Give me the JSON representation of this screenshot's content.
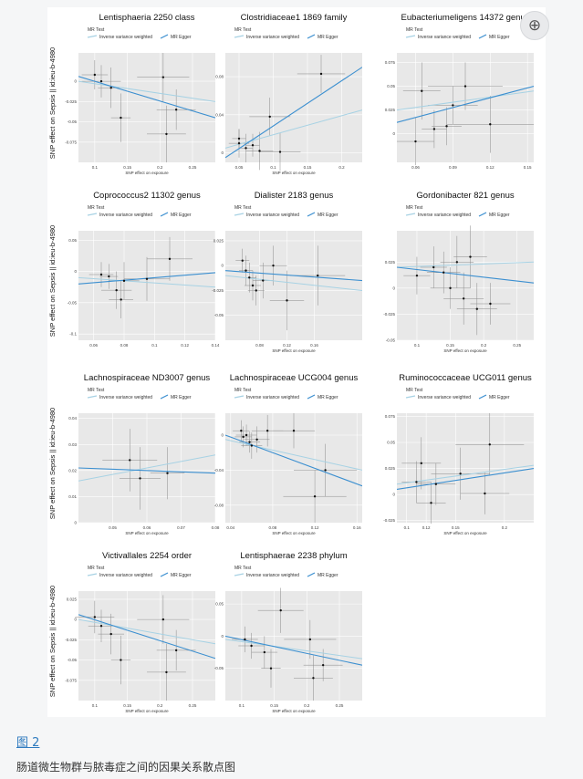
{
  "figure": {
    "link_label": "图 2",
    "caption": "肠道微生物群与脓毒症之间的因果关系散点图",
    "corner_icon": "zoom-icon",
    "colors": {
      "panel_bg": "#e8e8e8",
      "grid": "#ffffff",
      "ivw_line": "#3b8fd0",
      "egger_line": "#a7d2e4",
      "points": "#111111",
      "error_bars": "#8a8a8a"
    }
  },
  "chart_data": [
    {
      "type": "scatter",
      "title": "Lentisphaeria 2250 class",
      "ylabel": "SNP effect on Sepsis || id:ieu-b-4980",
      "xlabel": "SNP effect on exposure",
      "legend_title": "MR Test",
      "legend": [
        "Inverse variance weighted",
        "MR Egger"
      ],
      "xlim": [
        0.075,
        0.285
      ],
      "ylim": [
        -0.1,
        0.035
      ],
      "xticks": [
        0.1,
        0.15,
        0.2,
        0.25
      ],
      "yticks": [
        0,
        -0.025,
        -0.05,
        -0.075
      ],
      "points": [
        {
          "x": 0.11,
          "y": 0.0,
          "dx": 0.03,
          "dy": 0.02
        },
        {
          "x": 0.1,
          "y": 0.008,
          "dx": 0.02,
          "dy": 0.018
        },
        {
          "x": 0.125,
          "y": -0.008,
          "dx": 0.02,
          "dy": 0.025
        },
        {
          "x": 0.14,
          "y": -0.045,
          "dx": 0.015,
          "dy": 0.03
        },
        {
          "x": 0.205,
          "y": 0.005,
          "dx": 0.04,
          "dy": 0.03
        },
        {
          "x": 0.21,
          "y": -0.065,
          "dx": 0.03,
          "dy": 0.035
        },
        {
          "x": 0.225,
          "y": -0.035,
          "dx": 0.03,
          "dy": 0.025
        }
      ],
      "lines": {
        "ivw": [
          [
            0.075,
            0.006
          ],
          [
            0.285,
            -0.045
          ]
        ],
        "egger": [
          [
            0.075,
            0.0
          ],
          [
            0.285,
            -0.025
          ]
        ]
      }
    },
    {
      "type": "scatter",
      "title": "Clostridiaceae1 1869 family",
      "ylabel": "",
      "xlabel": "SNP effect on exposure",
      "legend_title": "MR Test",
      "legend": [
        "Inverse variance weighted",
        "MR Egger"
      ],
      "xlim": [
        0.03,
        0.23
      ],
      "ylim": [
        -0.01,
        0.105
      ],
      "xticks": [
        0.05,
        0.1,
        0.15,
        0.2
      ],
      "yticks": [
        0,
        0.04,
        0.08
      ],
      "points": [
        {
          "x": 0.05,
          "y": 0.01,
          "dx": 0.015,
          "dy": 0.015
        },
        {
          "x": 0.06,
          "y": 0.005,
          "dx": 0.01,
          "dy": 0.015
        },
        {
          "x": 0.07,
          "y": 0.008,
          "dx": 0.01,
          "dy": 0.012
        },
        {
          "x": 0.08,
          "y": 0.002,
          "dx": 0.02,
          "dy": 0.02
        },
        {
          "x": 0.095,
          "y": 0.038,
          "dx": 0.03,
          "dy": 0.02
        },
        {
          "x": 0.11,
          "y": 0.001,
          "dx": 0.03,
          "dy": 0.02
        },
        {
          "x": 0.05,
          "y": 0.015,
          "dx": 0.01,
          "dy": 0.01
        },
        {
          "x": 0.17,
          "y": 0.083,
          "dx": 0.035,
          "dy": 0.02
        }
      ],
      "lines": {
        "ivw": [
          [
            0.03,
            -0.005
          ],
          [
            0.23,
            0.09
          ]
        ],
        "egger": [
          [
            0.03,
            0.005
          ],
          [
            0.23,
            0.045
          ]
        ]
      }
    },
    {
      "type": "scatter",
      "title": "Eubacteriumeligens 14372 genus",
      "ylabel": "",
      "xlabel": "",
      "legend_title": "MR Test",
      "legend": [
        "Inverse variance weighted",
        "MR Egger"
      ],
      "xlim": [
        0.045,
        0.155
      ],
      "ylim": [
        -0.03,
        0.085
      ],
      "xticks": [
        0.06,
        0.09,
        0.12,
        0.15
      ],
      "yticks": [
        0.075,
        0.05,
        0.025,
        0.0
      ],
      "points": [
        {
          "x": 0.065,
          "y": 0.045,
          "dx": 0.015,
          "dy": 0.03
        },
        {
          "x": 0.06,
          "y": -0.008,
          "dx": 0.015,
          "dy": 0.025
        },
        {
          "x": 0.075,
          "y": 0.005,
          "dx": 0.01,
          "dy": 0.02
        },
        {
          "x": 0.085,
          "y": 0.008,
          "dx": 0.012,
          "dy": 0.02
        },
        {
          "x": 0.09,
          "y": 0.03,
          "dx": 0.02,
          "dy": 0.02
        },
        {
          "x": 0.1,
          "y": 0.05,
          "dx": 0.03,
          "dy": 0.025
        },
        {
          "x": 0.12,
          "y": 0.01,
          "dx": 0.035,
          "dy": 0.03
        }
      ],
      "lines": {
        "ivw": [
          [
            0.045,
            0.012
          ],
          [
            0.155,
            0.05
          ]
        ],
        "egger": [
          [
            0.045,
            0.025
          ],
          [
            0.155,
            0.045
          ]
        ]
      }
    },
    {
      "type": "scatter",
      "title": "Coprococcus2 11302 genus",
      "ylabel": "SNP effect on Sepsis || id:ieu-b-4980",
      "xlabel": "",
      "legend_title": "MR Test",
      "legend": [
        "Inverse variance weighted",
        "MR Egger"
      ],
      "xlim": [
        0.05,
        0.14
      ],
      "ylim": [
        -0.11,
        0.065
      ],
      "xticks": [
        0.06,
        0.08,
        0.1,
        0.12,
        0.14
      ],
      "yticks": [
        0.05,
        0.0,
        -0.05,
        -0.1
      ],
      "points": [
        {
          "x": 0.065,
          "y": -0.005,
          "dx": 0.008,
          "dy": 0.02
        },
        {
          "x": 0.07,
          "y": -0.008,
          "dx": 0.006,
          "dy": 0.02
        },
        {
          "x": 0.075,
          "y": -0.03,
          "dx": 0.01,
          "dy": 0.03
        },
        {
          "x": 0.078,
          "y": -0.045,
          "dx": 0.008,
          "dy": 0.03
        },
        {
          "x": 0.08,
          "y": -0.015,
          "dx": 0.01,
          "dy": 0.03
        },
        {
          "x": 0.095,
          "y": -0.012,
          "dx": 0.015,
          "dy": 0.035
        },
        {
          "x": 0.11,
          "y": 0.02,
          "dx": 0.015,
          "dy": 0.035
        }
      ],
      "lines": {
        "ivw": [
          [
            0.05,
            -0.02
          ],
          [
            0.14,
            -0.002
          ]
        ],
        "egger": [
          [
            0.05,
            -0.01
          ],
          [
            0.14,
            -0.025
          ]
        ]
      }
    },
    {
      "type": "scatter",
      "title": "Dialister 2183 genus",
      "ylabel": "",
      "xlabel": "SNP effect on exposure",
      "legend_title": "MR Test",
      "legend": [
        "Inverse variance weighted",
        "MR Egger"
      ],
      "xlim": [
        0.03,
        0.23
      ],
      "ylim": [
        -0.075,
        0.035
      ],
      "xticks": [
        0.08,
        0.12,
        0.16
      ],
      "yticks": [
        0.025,
        0.0,
        -0.025,
        -0.05
      ],
      "points": [
        {
          "x": 0.055,
          "y": 0.005,
          "dx": 0.01,
          "dy": 0.012
        },
        {
          "x": 0.06,
          "y": -0.005,
          "dx": 0.01,
          "dy": 0.015
        },
        {
          "x": 0.065,
          "y": -0.012,
          "dx": 0.01,
          "dy": 0.015
        },
        {
          "x": 0.07,
          "y": -0.02,
          "dx": 0.012,
          "dy": 0.015
        },
        {
          "x": 0.075,
          "y": -0.025,
          "dx": 0.012,
          "dy": 0.015
        },
        {
          "x": 0.085,
          "y": -0.015,
          "dx": 0.015,
          "dy": 0.018
        },
        {
          "x": 0.1,
          "y": 0.0,
          "dx": 0.02,
          "dy": 0.02
        },
        {
          "x": 0.12,
          "y": -0.035,
          "dx": 0.025,
          "dy": 0.03
        },
        {
          "x": 0.165,
          "y": -0.01,
          "dx": 0.04,
          "dy": 0.03
        }
      ],
      "lines": {
        "ivw": [
          [
            0.03,
            -0.005
          ],
          [
            0.23,
            -0.015
          ]
        ],
        "egger": [
          [
            0.03,
            -0.01
          ],
          [
            0.23,
            -0.025
          ]
        ]
      }
    },
    {
      "type": "scatter",
      "title": "Gordonibacter 821 genus",
      "ylabel": "",
      "xlabel": "SNP effect on exposure",
      "legend_title": "MR Test",
      "legend": [
        "Inverse variance weighted",
        "MR Egger"
      ],
      "xlim": [
        0.07,
        0.275
      ],
      "ylim": [
        -0.05,
        0.055
      ],
      "xticks": [
        0.1,
        0.15,
        0.2,
        0.25
      ],
      "yticks": [
        0.025,
        0.0,
        -0.025,
        -0.05
      ],
      "points": [
        {
          "x": 0.1,
          "y": 0.012,
          "dx": 0.02,
          "dy": 0.018
        },
        {
          "x": 0.125,
          "y": 0.02,
          "dx": 0.02,
          "dy": 0.02
        },
        {
          "x": 0.14,
          "y": 0.015,
          "dx": 0.025,
          "dy": 0.02
        },
        {
          "x": 0.15,
          "y": 0.0,
          "dx": 0.03,
          "dy": 0.02
        },
        {
          "x": 0.16,
          "y": 0.025,
          "dx": 0.025,
          "dy": 0.025
        },
        {
          "x": 0.17,
          "y": -0.01,
          "dx": 0.03,
          "dy": 0.025
        },
        {
          "x": 0.18,
          "y": 0.03,
          "dx": 0.025,
          "dy": 0.03
        },
        {
          "x": 0.19,
          "y": -0.02,
          "dx": 0.03,
          "dy": 0.025
        },
        {
          "x": 0.21,
          "y": -0.015,
          "dx": 0.03,
          "dy": 0.02
        }
      ],
      "lines": {
        "ivw": [
          [
            0.07,
            0.02
          ],
          [
            0.275,
            0.005
          ]
        ],
        "egger": [
          [
            0.07,
            0.02
          ],
          [
            0.275,
            0.025
          ]
        ]
      }
    },
    {
      "type": "scatter",
      "title": "Lachnospiraceae ND3007 genus",
      "ylabel": "SNP effect on Sepsis || id:ieu-b-4980",
      "xlabel": "SNP effect on exposure",
      "legend_title": "MR Test",
      "legend": [
        "Inverse variance weighted",
        "MR Egger"
      ],
      "xlim": [
        0.04,
        0.08
      ],
      "ylim": [
        0.0,
        0.042
      ],
      "xticks": [
        0.05,
        0.06,
        0.07,
        0.08
      ],
      "yticks": [
        0.04,
        0.03,
        0.02,
        0.01,
        0.0
      ],
      "points": [
        {
          "x": 0.055,
          "y": 0.024,
          "dx": 0.008,
          "dy": 0.012
        },
        {
          "x": 0.058,
          "y": 0.017,
          "dx": 0.006,
          "dy": 0.012
        },
        {
          "x": 0.066,
          "y": 0.019,
          "dx": 0.005,
          "dy": 0.01
        }
      ],
      "lines": {
        "ivw": [
          [
            0.04,
            0.021
          ],
          [
            0.08,
            0.019
          ]
        ],
        "egger": [
          [
            0.04,
            0.016
          ],
          [
            0.08,
            0.026
          ]
        ]
      }
    },
    {
      "type": "scatter",
      "title": "Lachnospiraceae UCG004 genus",
      "ylabel": "",
      "xlabel": "SNP effect on exposure",
      "legend_title": "MR Test",
      "legend": [
        "Inverse variance weighted",
        "MR Egger"
      ],
      "xlim": [
        0.035,
        0.165
      ],
      "ylim": [
        -0.1,
        0.025
      ],
      "xticks": [
        0.04,
        0.08,
        0.12,
        0.16
      ],
      "yticks": [
        0.0,
        -0.04,
        -0.08
      ],
      "points": [
        {
          "x": 0.05,
          "y": 0.005,
          "dx": 0.008,
          "dy": 0.012
        },
        {
          "x": 0.052,
          "y": -0.002,
          "dx": 0.008,
          "dy": 0.012
        },
        {
          "x": 0.055,
          "y": 0.0,
          "dx": 0.01,
          "dy": 0.012
        },
        {
          "x": 0.058,
          "y": -0.008,
          "dx": 0.01,
          "dy": 0.012
        },
        {
          "x": 0.06,
          "y": -0.012,
          "dx": 0.01,
          "dy": 0.015
        },
        {
          "x": 0.065,
          "y": -0.005,
          "dx": 0.012,
          "dy": 0.015
        },
        {
          "x": 0.075,
          "y": 0.005,
          "dx": 0.015,
          "dy": 0.018
        },
        {
          "x": 0.1,
          "y": 0.005,
          "dx": 0.02,
          "dy": 0.02
        },
        {
          "x": 0.12,
          "y": -0.07,
          "dx": 0.03,
          "dy": 0.03
        },
        {
          "x": 0.13,
          "y": -0.04,
          "dx": 0.03,
          "dy": 0.03
        }
      ],
      "lines": {
        "ivw": [
          [
            0.035,
            0.0
          ],
          [
            0.165,
            -0.058
          ]
        ],
        "egger": [
          [
            0.035,
            -0.005
          ],
          [
            0.165,
            -0.04
          ]
        ]
      }
    },
    {
      "type": "scatter",
      "title": "Ruminococcaceae UCG011 genus",
      "ylabel": "",
      "xlabel": "SNP effect on exposure",
      "legend_title": "MR Test",
      "legend": [
        "Inverse variance weighted",
        "MR Egger"
      ],
      "xlim": [
        0.09,
        0.23
      ],
      "ylim": [
        -0.027,
        0.078
      ],
      "xticks": [
        0.1,
        0.12,
        0.15,
        0.2
      ],
      "yticks": [
        0.075,
        0.05,
        0.025,
        0.0,
        -0.025
      ],
      "points": [
        {
          "x": 0.11,
          "y": 0.012,
          "dx": 0.015,
          "dy": 0.02
        },
        {
          "x": 0.115,
          "y": 0.03,
          "dx": 0.02,
          "dy": 0.025
        },
        {
          "x": 0.125,
          "y": -0.008,
          "dx": 0.015,
          "dy": 0.02
        },
        {
          "x": 0.13,
          "y": 0.01,
          "dx": 0.02,
          "dy": 0.02
        },
        {
          "x": 0.155,
          "y": 0.02,
          "dx": 0.03,
          "dy": 0.025
        },
        {
          "x": 0.18,
          "y": 0.001,
          "dx": 0.025,
          "dy": 0.02
        },
        {
          "x": 0.185,
          "y": 0.048,
          "dx": 0.035,
          "dy": 0.03
        }
      ],
      "lines": {
        "ivw": [
          [
            0.09,
            0.005
          ],
          [
            0.23,
            0.025
          ]
        ],
        "egger": [
          [
            0.09,
            0.01
          ],
          [
            0.23,
            0.028
          ]
        ]
      }
    },
    {
      "type": "scatter",
      "title": "Victivallales 2254 order",
      "ylabel": "SNP effect on Sepsis || id:ieu-b-4980",
      "xlabel": "SNP effect on exposure",
      "legend_title": "MR Test",
      "legend": [
        "Inverse variance weighted",
        "MR Egger"
      ],
      "xlim": [
        0.075,
        0.285
      ],
      "ylim": [
        -0.1,
        0.035
      ],
      "xticks": [
        0.1,
        0.15,
        0.2,
        0.25
      ],
      "yticks": [
        0.025,
        0.0,
        -0.025,
        -0.05,
        -0.075
      ],
      "points": [
        {
          "x": 0.1,
          "y": 0.003,
          "dx": 0.03,
          "dy": 0.02
        },
        {
          "x": 0.11,
          "y": -0.008,
          "dx": 0.02,
          "dy": 0.02
        },
        {
          "x": 0.125,
          "y": -0.018,
          "dx": 0.02,
          "dy": 0.025
        },
        {
          "x": 0.14,
          "y": -0.05,
          "dx": 0.015,
          "dy": 0.03
        },
        {
          "x": 0.205,
          "y": 0.0,
          "dx": 0.04,
          "dy": 0.03
        },
        {
          "x": 0.21,
          "y": -0.065,
          "dx": 0.03,
          "dy": 0.035
        },
        {
          "x": 0.225,
          "y": -0.038,
          "dx": 0.03,
          "dy": 0.025
        }
      ],
      "lines": {
        "ivw": [
          [
            0.075,
            0.006
          ],
          [
            0.285,
            -0.048
          ]
        ],
        "egger": [
          [
            0.075,
            0.0
          ],
          [
            0.285,
            -0.03
          ]
        ]
      }
    },
    {
      "type": "scatter",
      "title": "Lentisphaerae 2238 phylum",
      "ylabel": "",
      "xlabel": "SNP effect on exposure",
      "legend_title": "MR Test",
      "legend": [
        "Inverse variance weighted",
        "MR Egger"
      ],
      "xlim": [
        0.075,
        0.285
      ],
      "ylim": [
        -0.1,
        0.07
      ],
      "xticks": [
        0.1,
        0.15,
        0.2,
        0.25
      ],
      "yticks": [
        0.05,
        0.0,
        -0.05
      ],
      "points": [
        {
          "x": 0.105,
          "y": -0.005,
          "dx": 0.02,
          "dy": 0.02
        },
        {
          "x": 0.115,
          "y": -0.015,
          "dx": 0.02,
          "dy": 0.02
        },
        {
          "x": 0.135,
          "y": -0.025,
          "dx": 0.02,
          "dy": 0.025
        },
        {
          "x": 0.145,
          "y": -0.05,
          "dx": 0.015,
          "dy": 0.03
        },
        {
          "x": 0.16,
          "y": 0.04,
          "dx": 0.035,
          "dy": 0.035
        },
        {
          "x": 0.205,
          "y": -0.005,
          "dx": 0.04,
          "dy": 0.03
        },
        {
          "x": 0.21,
          "y": -0.065,
          "dx": 0.03,
          "dy": 0.035
        },
        {
          "x": 0.225,
          "y": -0.045,
          "dx": 0.03,
          "dy": 0.025
        }
      ],
      "lines": {
        "ivw": [
          [
            0.075,
            0.0
          ],
          [
            0.285,
            -0.045
          ]
        ],
        "egger": [
          [
            0.075,
            -0.005
          ],
          [
            0.285,
            -0.035
          ]
        ]
      }
    }
  ]
}
